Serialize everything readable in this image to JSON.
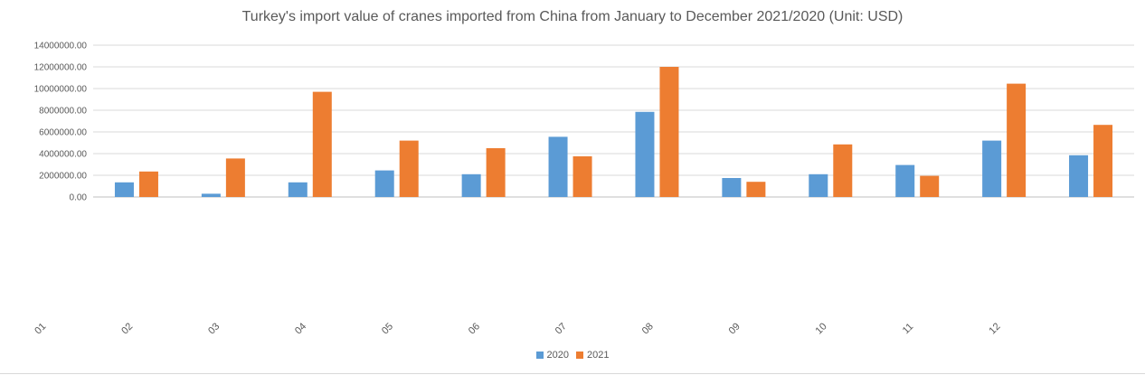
{
  "chart_data": {
    "type": "bar",
    "title": "Turkey's import value of cranes imported from China from January to December 2021/2020 (Unit: USD)",
    "categories": [
      "01",
      "02",
      "03",
      "04",
      "05",
      "06",
      "07",
      "08",
      "09",
      "10",
      "11",
      "12"
    ],
    "series": [
      {
        "name": "2020",
        "color": "#5b9bd5",
        "values": [
          1350000,
          300000,
          1350000,
          2450000,
          2100000,
          5550000,
          7850000,
          1750000,
          2100000,
          2950000,
          5200000,
          3850000
        ]
      },
      {
        "name": "2021",
        "color": "#ed7d31",
        "values": [
          2350000,
          3550000,
          9700000,
          5200000,
          4500000,
          3750000,
          12000000,
          1400000,
          4850000,
          1950000,
          10450000,
          6650000
        ]
      }
    ],
    "y_ticks": [
      "0.00",
      "2000000.00",
      "4000000.00",
      "6000000.00",
      "8000000.00",
      "10000000.00",
      "12000000.00",
      "14000000.00"
    ],
    "ylim": [
      0,
      14000000
    ],
    "grid": true,
    "legend_position": "bottom"
  }
}
